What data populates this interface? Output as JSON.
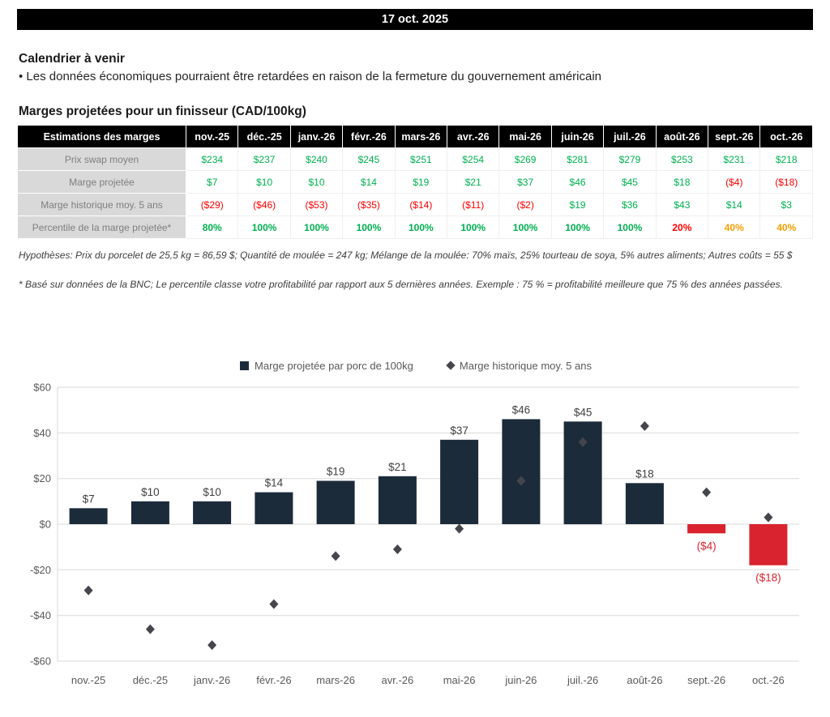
{
  "header": {
    "date": "17 oct. 2025"
  },
  "calendar": {
    "title": "Calendrier à venir",
    "bullet": "• Les données économiques pourraient être retardées en raison de la fermeture du gouvernement américain"
  },
  "margins": {
    "title": "Marges projetées pour un finisseur (CAD/100kg)",
    "table": {
      "header": [
        "Estimations des marges",
        "nov.-25",
        "déc.-25",
        "janv.-26",
        "févr.-26",
        "mars-26",
        "avr.-26",
        "mai-26",
        "juin-26",
        "juil.-26",
        "août-26",
        "sept.-26",
        "oct.-26"
      ],
      "rows": [
        {
          "label": "Prix swap moyen",
          "values": [
            "$234",
            "$237",
            "$240",
            "$245",
            "$251",
            "$254",
            "$269",
            "$281",
            "$279",
            "$253",
            "$231",
            "$218"
          ],
          "colors": [
            "green",
            "green",
            "green",
            "green",
            "green",
            "green",
            "green",
            "green",
            "green",
            "green",
            "green",
            "green"
          ],
          "bold": false
        },
        {
          "label": "Marge projetée",
          "values": [
            "$7",
            "$10",
            "$10",
            "$14",
            "$19",
            "$21",
            "$37",
            "$46",
            "$45",
            "$18",
            "($4)",
            "($18)"
          ],
          "colors": [
            "green",
            "green",
            "green",
            "green",
            "green",
            "green",
            "green",
            "green",
            "green",
            "green",
            "red",
            "red"
          ],
          "bold": false
        },
        {
          "label": "Marge historique moy. 5 ans",
          "values": [
            "($29)",
            "($46)",
            "($53)",
            "($35)",
            "($14)",
            "($11)",
            "($2)",
            "$19",
            "$36",
            "$43",
            "$14",
            "$3"
          ],
          "colors": [
            "red",
            "red",
            "red",
            "red",
            "red",
            "red",
            "red",
            "green",
            "green",
            "green",
            "green",
            "green"
          ],
          "bold": false
        },
        {
          "label": "Percentile de la marge projetée*",
          "values": [
            "80%",
            "100%",
            "100%",
            "100%",
            "100%",
            "100%",
            "100%",
            "100%",
            "100%",
            "20%",
            "40%",
            "40%"
          ],
          "colors": [
            "green",
            "green",
            "green",
            "green",
            "green",
            "green",
            "green",
            "green",
            "green",
            "red",
            "orange",
            "orange"
          ],
          "bold": true
        }
      ]
    },
    "note1": "Hypothèses: Prix du porcelet de 25,5 kg = 86,59 $; Quantité de moulée = 247 kg; Mélange de la moulée: 70% maïs, 25% tourteau de soya, 5% autres aliments; Autres coûts = 55 $",
    "note2": "* Basé sur données de la BNC; Le percentile classe votre profitabilité par rapport aux 5 dernières années. Exemple : 75 % = profitabilité meilleure que 75 % des années passées."
  },
  "chart_data": {
    "type": "bar",
    "categories": [
      "nov.-25",
      "déc.-25",
      "janv.-26",
      "févr.-26",
      "mars-26",
      "avr.-26",
      "mai-26",
      "juin-26",
      "juil.-26",
      "août-26",
      "sept.-26",
      "oct.-26"
    ],
    "series": [
      {
        "name": "Marge projetée par porc de 100kg",
        "type": "bar",
        "values": [
          7,
          10,
          10,
          14,
          19,
          21,
          37,
          46,
          45,
          18,
          -4,
          -18
        ],
        "labels": [
          "$7",
          "$10",
          "$10",
          "$14",
          "$19",
          "$21",
          "$37",
          "$46",
          "$45",
          "$18",
          "($4)",
          "($18)"
        ]
      },
      {
        "name": "Marge historique moy. 5 ans",
        "type": "scatter-diamond",
        "values": [
          -29,
          -46,
          -53,
          -35,
          -14,
          -11,
          -2,
          19,
          36,
          43,
          14,
          3
        ]
      }
    ],
    "ylim": [
      -60,
      60
    ],
    "ytick_values": [
      60,
      40,
      20,
      0,
      -20,
      -40,
      -60
    ],
    "ytick_labels": [
      "$60",
      "$40",
      "$20",
      "$0",
      "-$20",
      "-$40",
      "-$60"
    ],
    "grid": true,
    "legend_position": "top",
    "colors": {
      "bar_positive": "#1C2B3A",
      "bar_negative": "#D9232E",
      "diamond": "#44464C",
      "grid": "#D9D9D9",
      "axis_text": "#595959",
      "label_positive": "#404040"
    }
  },
  "palette": {
    "green": "#00B050",
    "red": "#FF0000",
    "orange": "#F59E00"
  }
}
